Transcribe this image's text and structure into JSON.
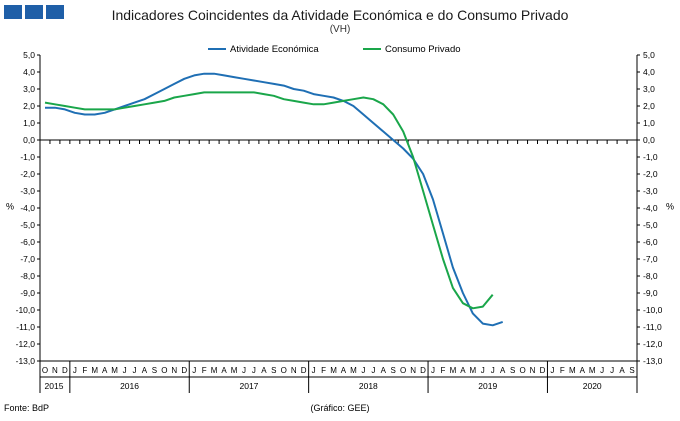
{
  "header": {
    "title": "Indicadores Coincidentes da Atividade Económica e do Consumo Privado",
    "subtitle": "(VH)"
  },
  "footer": {
    "source": "Fonte: BdP",
    "credit": "(Gráfico: GEE)"
  },
  "colors": {
    "logo": "#1f5fa8"
  },
  "chart_data": {
    "type": "line",
    "title": "Indicadores Coincidentes da Atividade Económica e do Consumo Privado",
    "subtitle": "(VH)",
    "ylabel_left": "%",
    "ylabel_right": "%",
    "ylim": [
      -13.0,
      5.0
    ],
    "yticks": [
      "5,0",
      "4,0",
      "3,0",
      "2,0",
      "1,0",
      "0,0",
      "-1,0",
      "-2,0",
      "-3,0",
      "-4,0",
      "-5,0",
      "-6,0",
      "-7,0",
      "-8,0",
      "-9,0",
      "-10,0",
      "-11,0",
      "-12,0",
      "-13,0"
    ],
    "month_labels": [
      "O",
      "N",
      "D",
      "J",
      "F",
      "M",
      "A",
      "M",
      "J",
      "J",
      "A",
      "S",
      "O",
      "N",
      "D",
      "J",
      "F",
      "M",
      "A",
      "M",
      "J",
      "J",
      "A",
      "S",
      "O",
      "N",
      "D",
      "J",
      "F",
      "M",
      "A",
      "M",
      "J",
      "J",
      "A",
      "S",
      "O",
      "N",
      "D",
      "J",
      "F",
      "M",
      "A",
      "M",
      "J",
      "J",
      "A",
      "S",
      "O",
      "N",
      "D",
      "J",
      "F",
      "M",
      "A",
      "M",
      "J",
      "J",
      "A",
      "S"
    ],
    "year_labels": [
      "2015",
      "2016",
      "2017",
      "2018",
      "2019",
      "2020"
    ],
    "legend_position": "top-center",
    "grid": false,
    "series": [
      {
        "name": "Atividade Económica",
        "color": "#1f6fb4",
        "values": [
          1.9,
          1.9,
          1.8,
          1.6,
          1.5,
          1.5,
          1.6,
          1.8,
          2.0,
          2.2,
          2.4,
          2.7,
          3.0,
          3.3,
          3.6,
          3.8,
          3.9,
          3.9,
          3.8,
          3.7,
          3.6,
          3.5,
          3.4,
          3.3,
          3.2,
          3.0,
          2.9,
          2.7,
          2.6,
          2.5,
          2.3,
          2.0,
          1.5,
          1.0,
          0.5,
          0.0,
          -0.5,
          -1.1,
          -2.0,
          -3.5,
          -5.5,
          -7.5,
          -9.0,
          -10.2,
          -10.8,
          -10.9,
          -10.7
        ]
      },
      {
        "name": "Consumo Privado",
        "color": "#1aa64a",
        "values": [
          2.2,
          2.1,
          2.0,
          1.9,
          1.8,
          1.8,
          1.8,
          1.8,
          1.9,
          2.0,
          2.1,
          2.2,
          2.3,
          2.5,
          2.6,
          2.7,
          2.8,
          2.8,
          2.8,
          2.8,
          2.8,
          2.8,
          2.7,
          2.6,
          2.4,
          2.3,
          2.2,
          2.1,
          2.1,
          2.2,
          2.3,
          2.4,
          2.5,
          2.4,
          2.1,
          1.5,
          0.5,
          -1.0,
          -3.0,
          -5.0,
          -7.0,
          -8.7,
          -9.6,
          -9.9,
          -9.8,
          -9.1
        ]
      }
    ]
  }
}
